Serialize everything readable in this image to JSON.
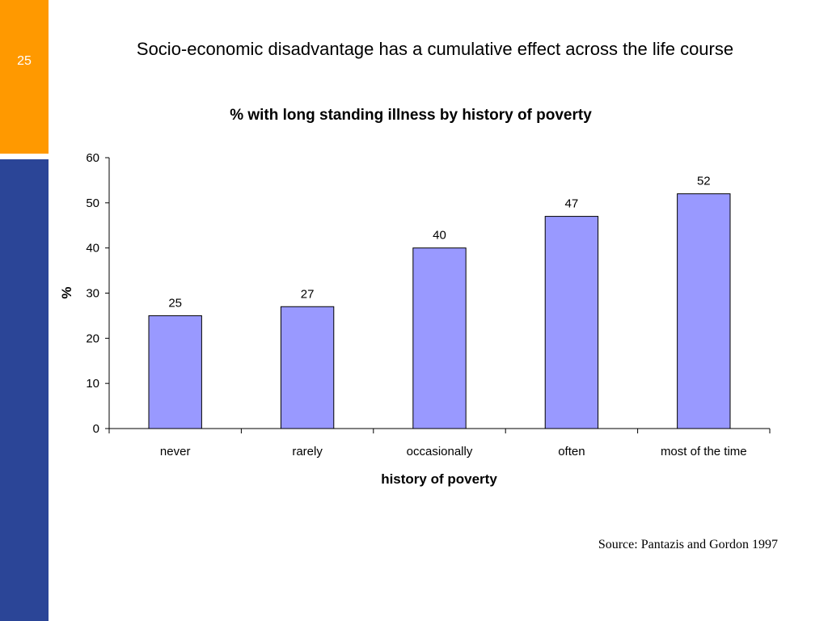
{
  "slide": {
    "number": "25",
    "title": "Socio-economic disadvantage has a cumulative effect across the life course",
    "source": "Source: Pantazis and Gordon 1997"
  },
  "colors": {
    "sidebar_orange": "#FF9900",
    "sidebar_blue": "#2B4597",
    "bar_fill": "#9999FF",
    "bar_stroke": "#000000"
  },
  "chart_data": {
    "type": "bar",
    "title": "% with long standing illness by history of poverty",
    "xlabel": "history of poverty",
    "ylabel": "%",
    "categories": [
      "never",
      "rarely",
      "occasionally",
      "often",
      "most of the time"
    ],
    "values": [
      25,
      27,
      40,
      47,
      52
    ],
    "ylim": [
      0,
      60
    ],
    "yticks": [
      0,
      10,
      20,
      30,
      40,
      50,
      60
    ],
    "grid": false,
    "legend": "none",
    "data_labels": true
  }
}
